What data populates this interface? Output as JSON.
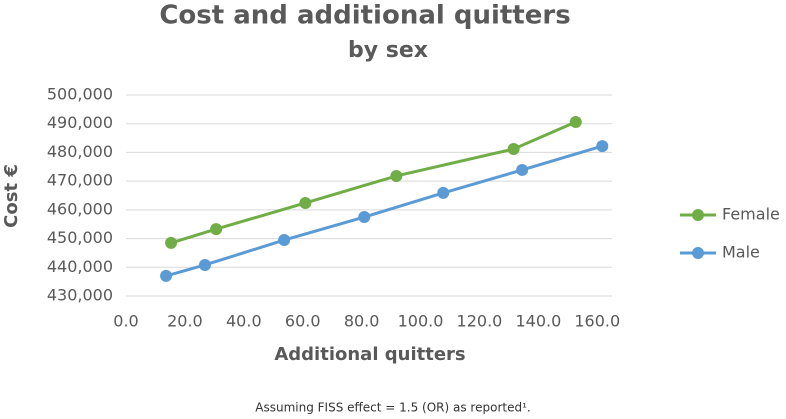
{
  "chart_data": {
    "type": "line",
    "title": "Cost and additional quitters",
    "subtitle": "by sex",
    "x_label": "Additional quitters",
    "y_label": "Cost €",
    "footnote": "Assuming FISS effect = 1.5 (OR) as reported¹.",
    "series": [
      {
        "name": "Female",
        "color": "#70ad47",
        "x": [
          15.3,
          30.6,
          60.9,
          91.8,
          131.6,
          152.7
        ],
        "values": [
          448500,
          453300,
          462400,
          471800,
          481200,
          490600
        ]
      },
      {
        "name": "Male",
        "color": "#5b9bd5",
        "x": [
          13.6,
          26.8,
          53.7,
          80.9,
          107.7,
          134.5,
          161.7
        ],
        "values": [
          437000,
          440800,
          449500,
          457500,
          465900,
          473900,
          482200
        ]
      }
    ],
    "xlim": [
      0,
      165
    ],
    "xticks": [
      {
        "value": 0,
        "label": "0.0"
      },
      {
        "value": 20,
        "label": "20.0"
      },
      {
        "value": 40,
        "label": "40.0"
      },
      {
        "value": 60,
        "label": "60.0"
      },
      {
        "value": 80,
        "label": "80.0"
      },
      {
        "value": 100,
        "label": "100.0"
      },
      {
        "value": 120,
        "label": "120.0"
      },
      {
        "value": 140,
        "label": "140.0"
      },
      {
        "value": 160,
        "label": "160.0"
      }
    ],
    "ylim": [
      430000,
      500000
    ],
    "yticks": [
      {
        "value": 430000,
        "label": "430,000"
      },
      {
        "value": 440000,
        "label": "440,000"
      },
      {
        "value": 450000,
        "label": "450,000"
      },
      {
        "value": 460000,
        "label": "460,000"
      },
      {
        "value": 470000,
        "label": "470,000"
      },
      {
        "value": 480000,
        "label": "480,000"
      },
      {
        "value": 490000,
        "label": "490,000"
      },
      {
        "value": 500000,
        "label": "500,000"
      }
    ],
    "grid": true,
    "legend": "right"
  }
}
